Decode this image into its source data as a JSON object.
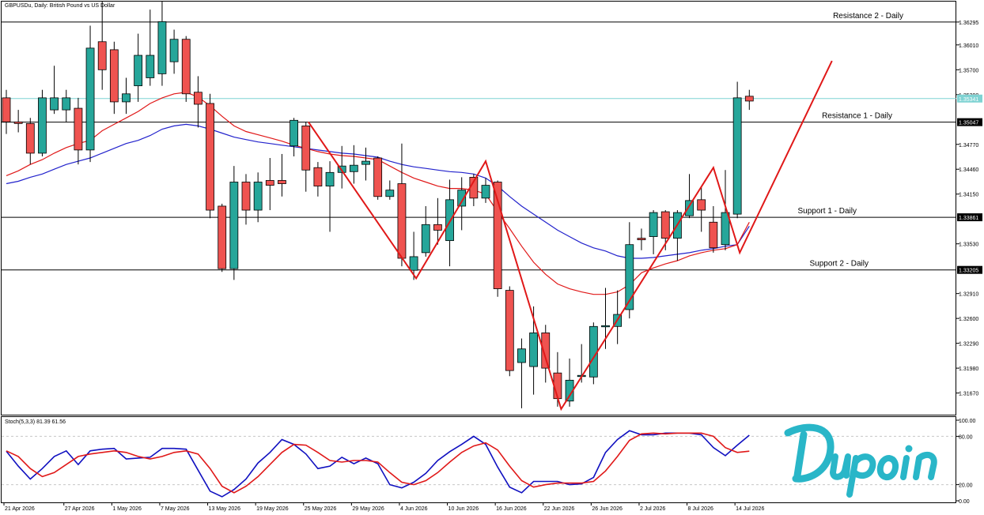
{
  "chart_data": [
    {
      "type": "candlestick",
      "title": "GBPUSDu, Daily:  British Pound vs US Dollar",
      "y_ticks": [
        "1.36295",
        "1.36010",
        "1.35700",
        "1.35390",
        "1.34770",
        "1.34460",
        "1.34150",
        "1.33530",
        "1.32910",
        "1.32600",
        "1.32290",
        "1.31980",
        "1.31670"
      ],
      "current_price": "1.35341",
      "ylim": [
        1.314,
        1.3655
      ],
      "x_ticks": [
        {
          "label": "21 Apr 2026",
          "index": 0
        },
        {
          "label": "27 Apr 2026",
          "index": 5
        },
        {
          "label": "1 May 2026",
          "index": 9
        },
        {
          "label": "7 May 2026",
          "index": 13
        },
        {
          "label": "13 May 2026",
          "index": 17
        },
        {
          "label": "19 May 2026",
          "index": 21
        },
        {
          "label": "25 May 2026",
          "index": 25
        },
        {
          "label": "29 May 2026",
          "index": 29
        },
        {
          "label": "4 Jun 2026",
          "index": 33
        },
        {
          "label": "10 Jun 2026",
          "index": 37
        },
        {
          "label": "16 Jun 2026",
          "index": 41
        },
        {
          "label": "22 Jun 2026",
          "index": 45
        },
        {
          "label": "26 Jun 2026",
          "index": 49
        },
        {
          "label": "2 Jul 2026",
          "index": 53
        },
        {
          "label": "8 Jul 2026",
          "index": 57
        },
        {
          "label": "14 Jul 2026",
          "index": 61
        }
      ],
      "levels": [
        {
          "name": "Resistance 2 - Daily",
          "price": 1.36295
        },
        {
          "name": "Resistance 1 - Daily",
          "price": 1.35047
        },
        {
          "name": "Support 1 - Daily",
          "price": 1.33861
        },
        {
          "name": "Support 2 - Daily",
          "price": 1.33205
        }
      ],
      "candles": [
        {
          "o": 1.3535,
          "h": 1.3545,
          "c": 1.3505,
          "l": 1.349
        },
        {
          "o": 1.3505,
          "h": 1.352,
          "c": 1.3503,
          "l": 1.3492
        },
        {
          "o": 1.3503,
          "h": 1.351,
          "c": 1.3466,
          "l": 1.3452
        },
        {
          "o": 1.3466,
          "h": 1.3545,
          "c": 1.3535,
          "l": 1.3462
        },
        {
          "o": 1.352,
          "h": 1.3575,
          "c": 1.3535,
          "l": 1.3515
        },
        {
          "o": 1.352,
          "h": 1.3545,
          "c": 1.3535,
          "l": 1.3505
        },
        {
          "o": 1.3522,
          "h": 1.3535,
          "c": 1.347,
          "l": 1.3452
        },
        {
          "o": 1.347,
          "h": 1.3625,
          "c": 1.3597,
          "l": 1.3455
        },
        {
          "o": 1.3605,
          "h": 1.3658,
          "c": 1.357,
          "l": 1.3545
        },
        {
          "o": 1.3595,
          "h": 1.3605,
          "c": 1.353,
          "l": 1.3515
        },
        {
          "o": 1.353,
          "h": 1.356,
          "c": 1.354,
          "l": 1.3515
        },
        {
          "o": 1.355,
          "h": 1.3615,
          "c": 1.3588,
          "l": 1.353
        },
        {
          "o": 1.356,
          "h": 1.3645,
          "c": 1.3588,
          "l": 1.355
        },
        {
          "o": 1.3565,
          "h": 1.3655,
          "c": 1.363,
          "l": 1.355
        },
        {
          "o": 1.358,
          "h": 1.362,
          "c": 1.3608,
          "l": 1.3565
        },
        {
          "o": 1.3608,
          "h": 1.3612,
          "c": 1.354,
          "l": 1.353
        },
        {
          "o": 1.3542,
          "h": 1.3562,
          "c": 1.3527,
          "l": 1.3498
        },
        {
          "o": 1.3528,
          "h": 1.354,
          "c": 1.3395,
          "l": 1.3385
        },
        {
          "o": 1.34,
          "h": 1.3403,
          "c": 1.3322,
          "l": 1.3318
        },
        {
          "o": 1.3322,
          "h": 1.345,
          "c": 1.343,
          "l": 1.3308
        },
        {
          "o": 1.343,
          "h": 1.344,
          "c": 1.3395,
          "l": 1.3377
        },
        {
          "o": 1.3395,
          "h": 1.3442,
          "c": 1.343,
          "l": 1.338
        },
        {
          "o": 1.3432,
          "h": 1.346,
          "c": 1.3426,
          "l": 1.3395
        },
        {
          "o": 1.3432,
          "h": 1.3465,
          "c": 1.3428,
          "l": 1.3412
        },
        {
          "o": 1.3475,
          "h": 1.351,
          "c": 1.3507,
          "l": 1.3462
        },
        {
          "o": 1.35,
          "h": 1.3505,
          "c": 1.3445,
          "l": 1.3418
        },
        {
          "o": 1.3448,
          "h": 1.3455,
          "c": 1.3425,
          "l": 1.3412
        },
        {
          "o": 1.3425,
          "h": 1.3456,
          "c": 1.3442,
          "l": 1.3368
        },
        {
          "o": 1.3442,
          "h": 1.3475,
          "c": 1.345,
          "l": 1.3422
        },
        {
          "o": 1.3443,
          "h": 1.3476,
          "c": 1.3451,
          "l": 1.3428
        },
        {
          "o": 1.3452,
          "h": 1.3473,
          "c": 1.3456,
          "l": 1.3432
        },
        {
          "o": 1.346,
          "h": 1.3462,
          "c": 1.3412,
          "l": 1.3408
        },
        {
          "o": 1.3412,
          "h": 1.3432,
          "c": 1.342,
          "l": 1.3408
        },
        {
          "o": 1.3428,
          "h": 1.3478,
          "c": 1.3335,
          "l": 1.3325
        },
        {
          "o": 1.332,
          "h": 1.3368,
          "c": 1.3337,
          "l": 1.3308
        },
        {
          "o": 1.3342,
          "h": 1.34,
          "c": 1.3377,
          "l": 1.3337
        },
        {
          "o": 1.3377,
          "h": 1.341,
          "c": 1.337,
          "l": 1.3352
        },
        {
          "o": 1.3357,
          "h": 1.3433,
          "c": 1.3408,
          "l": 1.3325
        },
        {
          "o": 1.34,
          "h": 1.3436,
          "c": 1.342,
          "l": 1.337
        },
        {
          "o": 1.3436,
          "h": 1.344,
          "c": 1.341,
          "l": 1.34
        },
        {
          "o": 1.341,
          "h": 1.3435,
          "c": 1.3426,
          "l": 1.3404
        },
        {
          "o": 1.343,
          "h": 1.3432,
          "c": 1.3297,
          "l": 1.3287
        },
        {
          "o": 1.3295,
          "h": 1.33,
          "c": 1.3195,
          "l": 1.3188
        },
        {
          "o": 1.3205,
          "h": 1.3235,
          "c": 1.3222,
          "l": 1.3148
        },
        {
          "o": 1.32,
          "h": 1.3275,
          "c": 1.3242,
          "l": 1.3165
        },
        {
          "o": 1.3242,
          "h": 1.3252,
          "c": 1.3198,
          "l": 1.318
        },
        {
          "o": 1.3192,
          "h": 1.3218,
          "c": 1.316,
          "l": 1.315
        },
        {
          "o": 1.3157,
          "h": 1.321,
          "c": 1.3183,
          "l": 1.315
        },
        {
          "o": 1.3188,
          "h": 1.3228,
          "c": 1.3189,
          "l": 1.318
        },
        {
          "o": 1.3187,
          "h": 1.3255,
          "c": 1.325,
          "l": 1.3178
        },
        {
          "o": 1.325,
          "h": 1.3298,
          "c": 1.3251,
          "l": 1.3222
        },
        {
          "o": 1.325,
          "h": 1.3295,
          "c": 1.3265,
          "l": 1.3228
        },
        {
          "o": 1.3271,
          "h": 1.338,
          "c": 1.3352,
          "l": 1.326
        },
        {
          "o": 1.336,
          "h": 1.3372,
          "c": 1.3358,
          "l": 1.3345
        },
        {
          "o": 1.3362,
          "h": 1.3395,
          "c": 1.3392,
          "l": 1.334
        },
        {
          "o": 1.3393,
          "h": 1.3395,
          "c": 1.336,
          "l": 1.3345
        },
        {
          "o": 1.336,
          "h": 1.3395,
          "c": 1.3392,
          "l": 1.3332
        },
        {
          "o": 1.3388,
          "h": 1.344,
          "c": 1.3407,
          "l": 1.3385
        },
        {
          "o": 1.3408,
          "h": 1.3425,
          "c": 1.3395,
          "l": 1.3368
        },
        {
          "o": 1.338,
          "h": 1.34,
          "c": 1.3348,
          "l": 1.3342
        },
        {
          "o": 1.3352,
          "h": 1.3445,
          "c": 1.3392,
          "l": 1.3345
        },
        {
          "o": 1.339,
          "h": 1.3555,
          "c": 1.3535,
          "l": 1.3385
        },
        {
          "o": 1.3537,
          "h": 1.3545,
          "c": 1.3531,
          "l": 1.352
        }
      ],
      "ma_fast": [
        1.3438,
        1.3444,
        1.3452,
        1.3458,
        1.3466,
        1.3473,
        1.3478,
        1.3482,
        1.3494,
        1.3502,
        1.351,
        1.3518,
        1.3528,
        1.3535,
        1.354,
        1.3542,
        1.3536,
        1.3525,
        1.3512,
        1.35,
        1.3493,
        1.3489,
        1.3485,
        1.3481,
        1.3476,
        1.3472,
        1.3468,
        1.3465,
        1.3463,
        1.3462,
        1.346,
        1.3458,
        1.345,
        1.3442,
        1.3435,
        1.343,
        1.3425,
        1.3422,
        1.3422,
        1.342,
        1.3415,
        1.3393,
        1.3372,
        1.335,
        1.333,
        1.3315,
        1.3303,
        1.3297,
        1.3293,
        1.329,
        1.329,
        1.3293,
        1.3302,
        1.3317,
        1.3323,
        1.3328,
        1.3332,
        1.3338,
        1.3342,
        1.3345,
        1.3347,
        1.3352,
        1.338
      ],
      "ma_slow": [
        1.3428,
        1.3431,
        1.3436,
        1.344,
        1.3446,
        1.3452,
        1.3456,
        1.346,
        1.3466,
        1.3472,
        1.3478,
        1.3482,
        1.3488,
        1.3496,
        1.35,
        1.3502,
        1.35,
        1.3496,
        1.3491,
        1.3486,
        1.3483,
        1.348,
        1.3478,
        1.3476,
        1.3474,
        1.3472,
        1.347,
        1.3468,
        1.3466,
        1.3465,
        1.3463,
        1.3461,
        1.3456,
        1.3452,
        1.3449,
        1.3447,
        1.3445,
        1.3443,
        1.3442,
        1.344,
        1.3435,
        1.3425,
        1.3412,
        1.34,
        1.339,
        1.338,
        1.337,
        1.3362,
        1.3354,
        1.3348,
        1.3344,
        1.3338,
        1.3335,
        1.3335,
        1.3336,
        1.3338,
        1.334,
        1.3342,
        1.3345,
        1.3347,
        1.335,
        1.3352,
        1.3375
      ],
      "zigzag": [
        {
          "index": 25.2,
          "price": 1.3505
        },
        {
          "index": 34.2,
          "price": 1.331
        },
        {
          "index": 40.0,
          "price": 1.3456
        },
        {
          "index": 46.3,
          "price": 1.3147
        },
        {
          "index": 59.0,
          "price": 1.3448
        },
        {
          "index": 61.2,
          "price": 1.3342
        },
        {
          "index": 68.9,
          "price": 1.3581
        }
      ]
    },
    {
      "type": "line",
      "title": "Stoch(5,3,3) 81.39 61.56",
      "y_ticks": [
        "100.00",
        "80.00",
        "20.00",
        "0.00"
      ],
      "ylim": [
        0,
        100
      ],
      "series": [
        {
          "values": [
            61.56,
            43,
            27,
            40,
            55,
            62,
            45,
            62,
            64,
            65,
            52,
            53,
            54,
            65,
            65,
            64,
            38,
            12,
            5,
            14,
            27,
            47,
            60,
            76,
            70,
            58,
            40,
            43,
            54,
            46,
            53,
            46,
            20,
            16,
            23,
            34,
            50,
            61,
            70,
            80,
            70,
            42,
            17,
            10,
            24,
            24,
            24,
            20,
            21,
            29,
            60,
            76,
            87,
            82,
            82,
            84,
            84,
            84,
            82,
            66,
            56,
            69,
            81.39
          ]
        },
        {
          "values": [
            62,
            55,
            40,
            30,
            35,
            45,
            55,
            58,
            60,
            62,
            60,
            55,
            52,
            55,
            60,
            62,
            58,
            40,
            18,
            10,
            18,
            30,
            45,
            60,
            70,
            69,
            60,
            50,
            48,
            50,
            50,
            48,
            35,
            23,
            20,
            25,
            35,
            48,
            60,
            68,
            72,
            63,
            43,
            25,
            17,
            20,
            22,
            22,
            22,
            24,
            37,
            55,
            75,
            83,
            84,
            83,
            84,
            84,
            84,
            80,
            66,
            60,
            61.56
          ]
        }
      ]
    }
  ]
}
